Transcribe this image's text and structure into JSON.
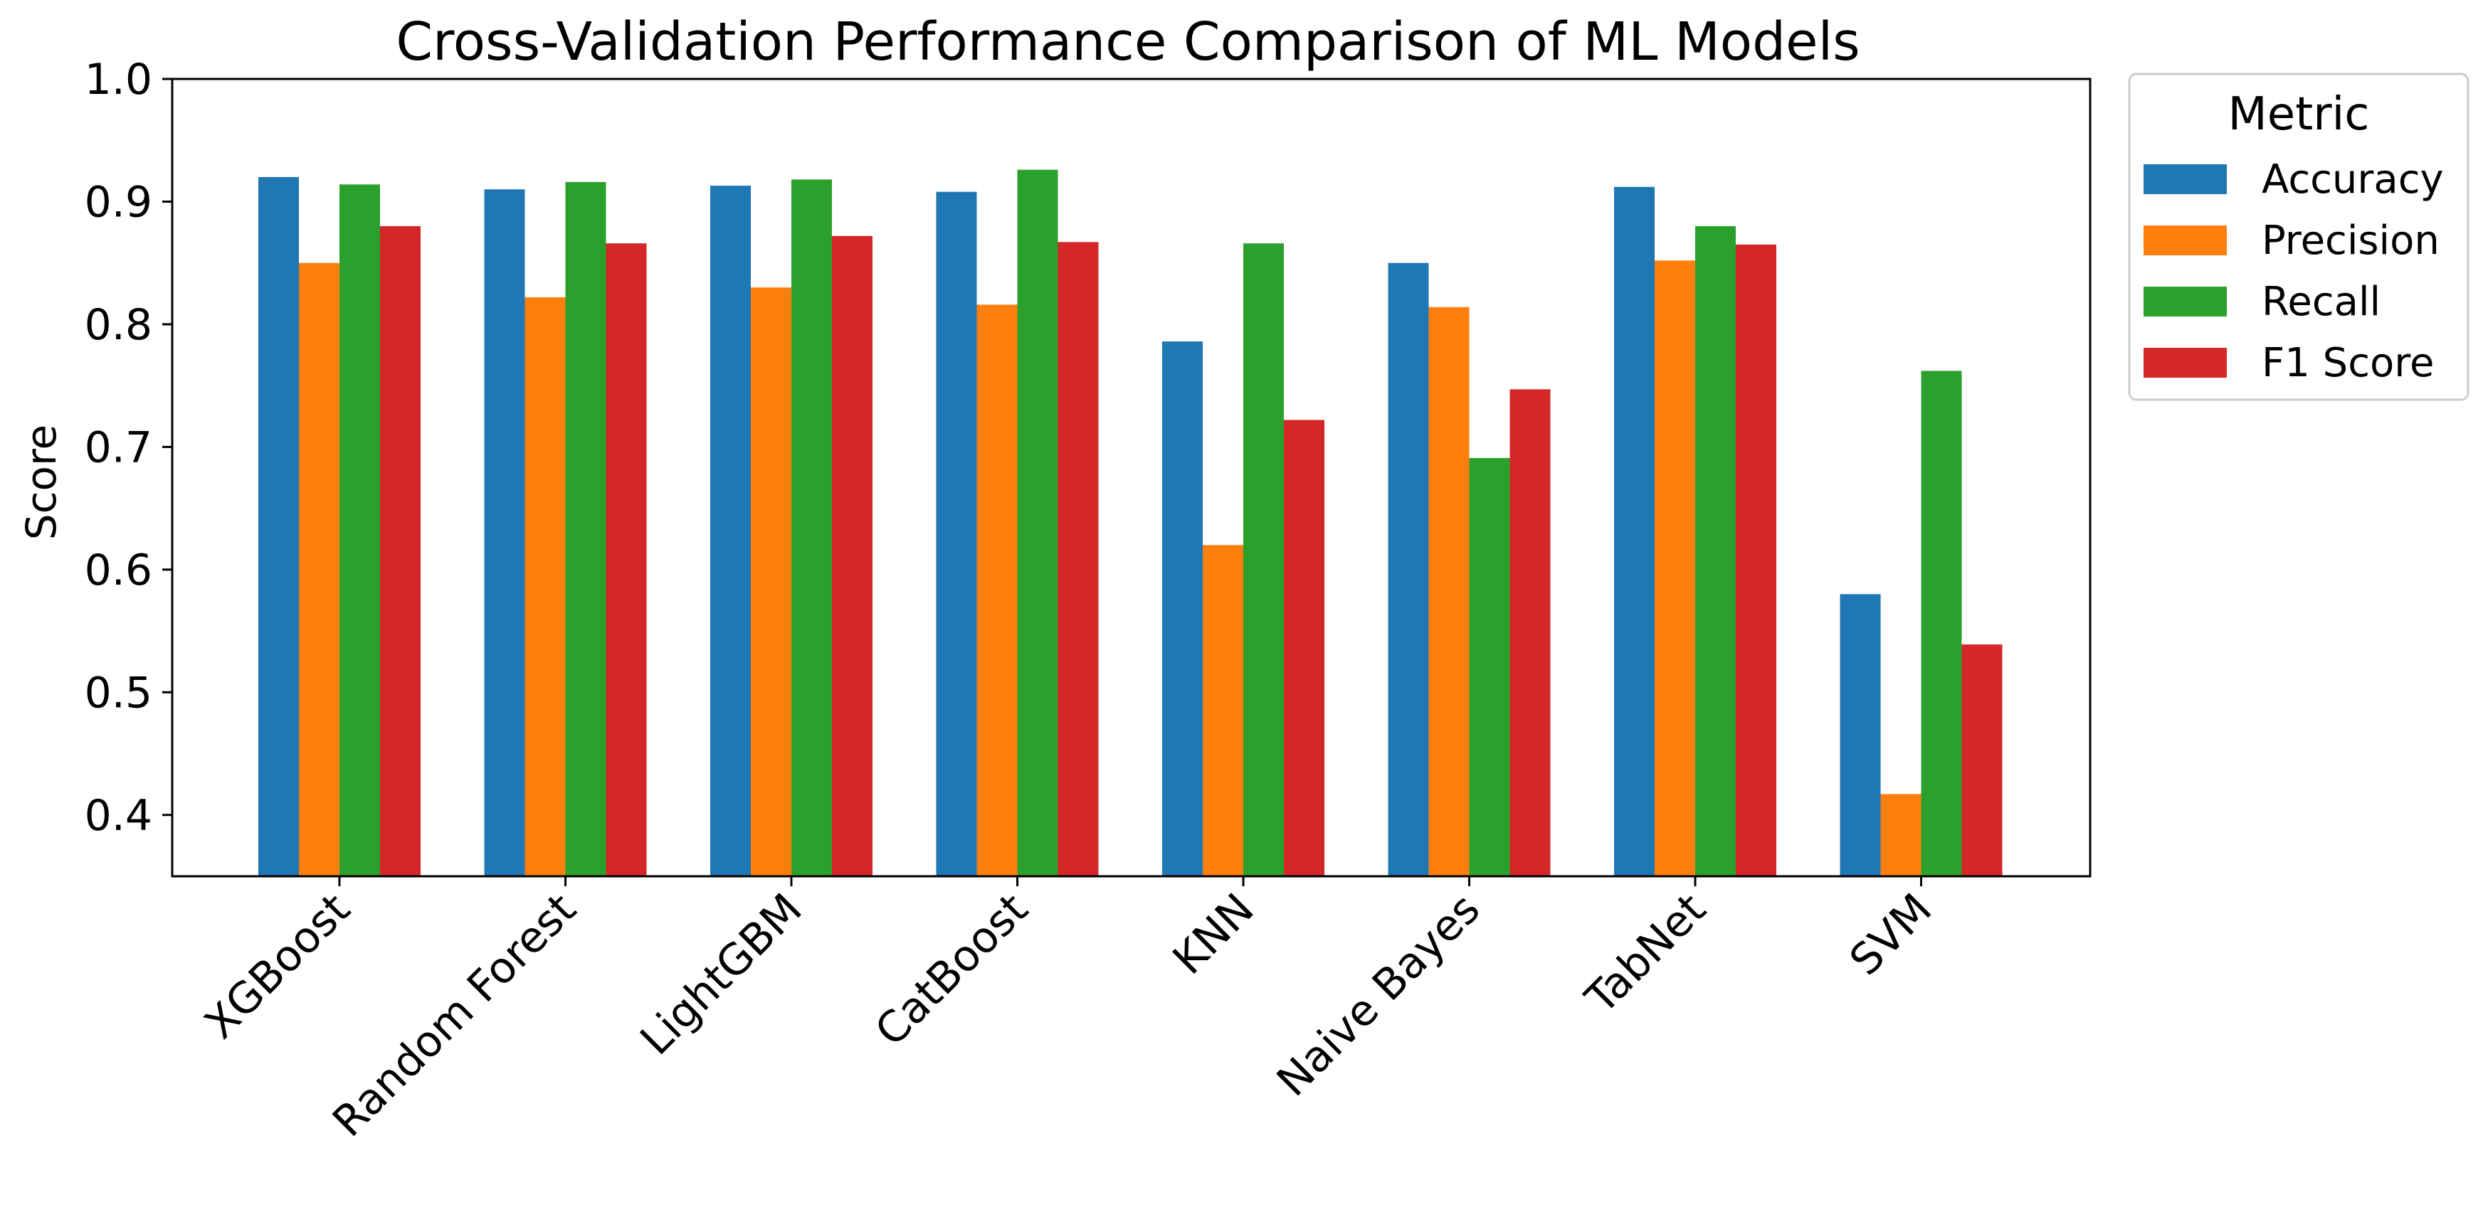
{
  "chart_data": {
    "type": "bar",
    "title": "Cross-Validation Performance Comparison of ML Models",
    "xlabel": "",
    "ylabel": "Score",
    "ylim": [
      0.35,
      1.0
    ],
    "yticks": [
      "0.4",
      "0.5",
      "0.6",
      "0.7",
      "0.8",
      "0.9",
      "1.0"
    ],
    "grid": false,
    "legend": {
      "title": "Metric",
      "placement": "outside-top-right"
    },
    "categories": [
      "XGBoost",
      "Random Forest",
      "LightGBM",
      "CatBoost",
      "KNN",
      "Naive Bayes",
      "TabNet",
      "SVM"
    ],
    "series": [
      {
        "name": "Accuracy",
        "color": "#1f77b4",
        "values": [
          0.92,
          0.91,
          0.913,
          0.908,
          0.786,
          0.85,
          0.912,
          0.58
        ]
      },
      {
        "name": "Precision",
        "color": "#ff7f0e",
        "values": [
          0.85,
          0.822,
          0.83,
          0.816,
          0.62,
          0.814,
          0.852,
          0.417
        ]
      },
      {
        "name": "Recall",
        "color": "#2ca02c",
        "values": [
          0.914,
          0.916,
          0.918,
          0.926,
          0.866,
          0.691,
          0.88,
          0.762
        ]
      },
      {
        "name": "F1 Score",
        "color": "#d62728",
        "values": [
          0.88,
          0.866,
          0.872,
          0.867,
          0.722,
          0.747,
          0.865,
          0.539
        ]
      }
    ]
  }
}
